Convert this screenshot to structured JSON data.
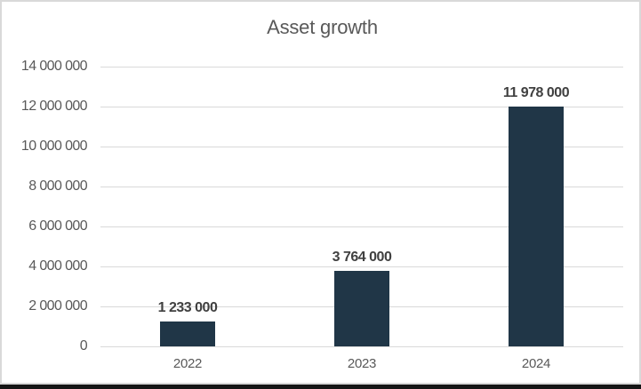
{
  "frame": {
    "background": "#ffffff",
    "border_color": "#d9d9d9",
    "bottom_rule_color": "#151515"
  },
  "chart_data": {
    "type": "bar",
    "title": "Asset growth",
    "categories": [
      "2022",
      "2023",
      "2024"
    ],
    "values": [
      1233000,
      3764000,
      11978000
    ],
    "data_labels": [
      "1 233 000",
      "3 764 000",
      "11 978 000"
    ],
    "xlabel": "",
    "ylabel": "",
    "ylim": [
      0,
      14000000
    ],
    "y_ticks": [
      0,
      2000000,
      4000000,
      6000000,
      8000000,
      10000000,
      12000000,
      14000000
    ],
    "y_tick_labels": [
      "0",
      "2 000 000",
      "4 000 000",
      "6 000 000",
      "8 000 000",
      "10 000 000",
      "12 000 000",
      "14 000 000"
    ],
    "grid": true,
    "legend": false,
    "bar_color": "#203647",
    "title_color": "#595959",
    "axis_label_color": "#595959",
    "data_label_color": "#404040",
    "gridline_color": "#d9d9d9"
  }
}
